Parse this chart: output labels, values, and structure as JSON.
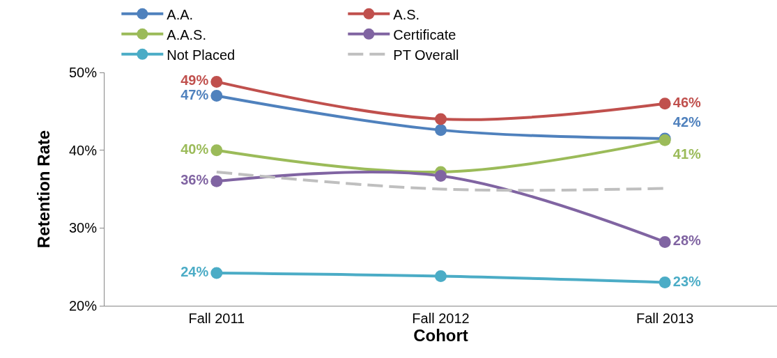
{
  "chart_data": {
    "type": "line",
    "xlabel": "Cohort",
    "ylabel": "Retention Rate",
    "categories": [
      "Fall 2011",
      "Fall 2012",
      "Fall 2013"
    ],
    "series": [
      {
        "name": "A.A.",
        "color": "#4f81bd",
        "values": [
          47,
          42.6,
          41.5
        ],
        "value_labels": [
          "47%",
          null,
          "42%"
        ]
      },
      {
        "name": "A.S.",
        "color": "#c0504d",
        "values": [
          48.8,
          44,
          46
        ],
        "value_labels": [
          "49%",
          null,
          "46%"
        ]
      },
      {
        "name": "A.A.S.",
        "color": "#9bbb59",
        "values": [
          40,
          37.2,
          41.3
        ],
        "value_labels": [
          "40%",
          null,
          "41%"
        ]
      },
      {
        "name": "Certificate",
        "color": "#8064a2",
        "values": [
          36,
          36.7,
          28.2
        ],
        "value_labels": [
          "36%",
          null,
          "28%"
        ]
      },
      {
        "name": "Not Placed",
        "color": "#4bacc6",
        "values": [
          24.2,
          23.8,
          23
        ],
        "value_labels": [
          "24%",
          null,
          "23%"
        ]
      },
      {
        "name": "PT Overall",
        "color": "#bfbfbf",
        "values": [
          37.2,
          35,
          35.1
        ],
        "marker": "none",
        "line_style": "dashed"
      }
    ],
    "marker": "circle",
    "line_style": "solid",
    "ylim": [
      20,
      50
    ],
    "yticks": [
      {
        "value": 20,
        "label": "20%"
      },
      {
        "value": 30,
        "label": "30%"
      },
      {
        "value": 40,
        "label": "40%"
      },
      {
        "value": 50,
        "label": "50%"
      }
    ],
    "legend": "top"
  }
}
